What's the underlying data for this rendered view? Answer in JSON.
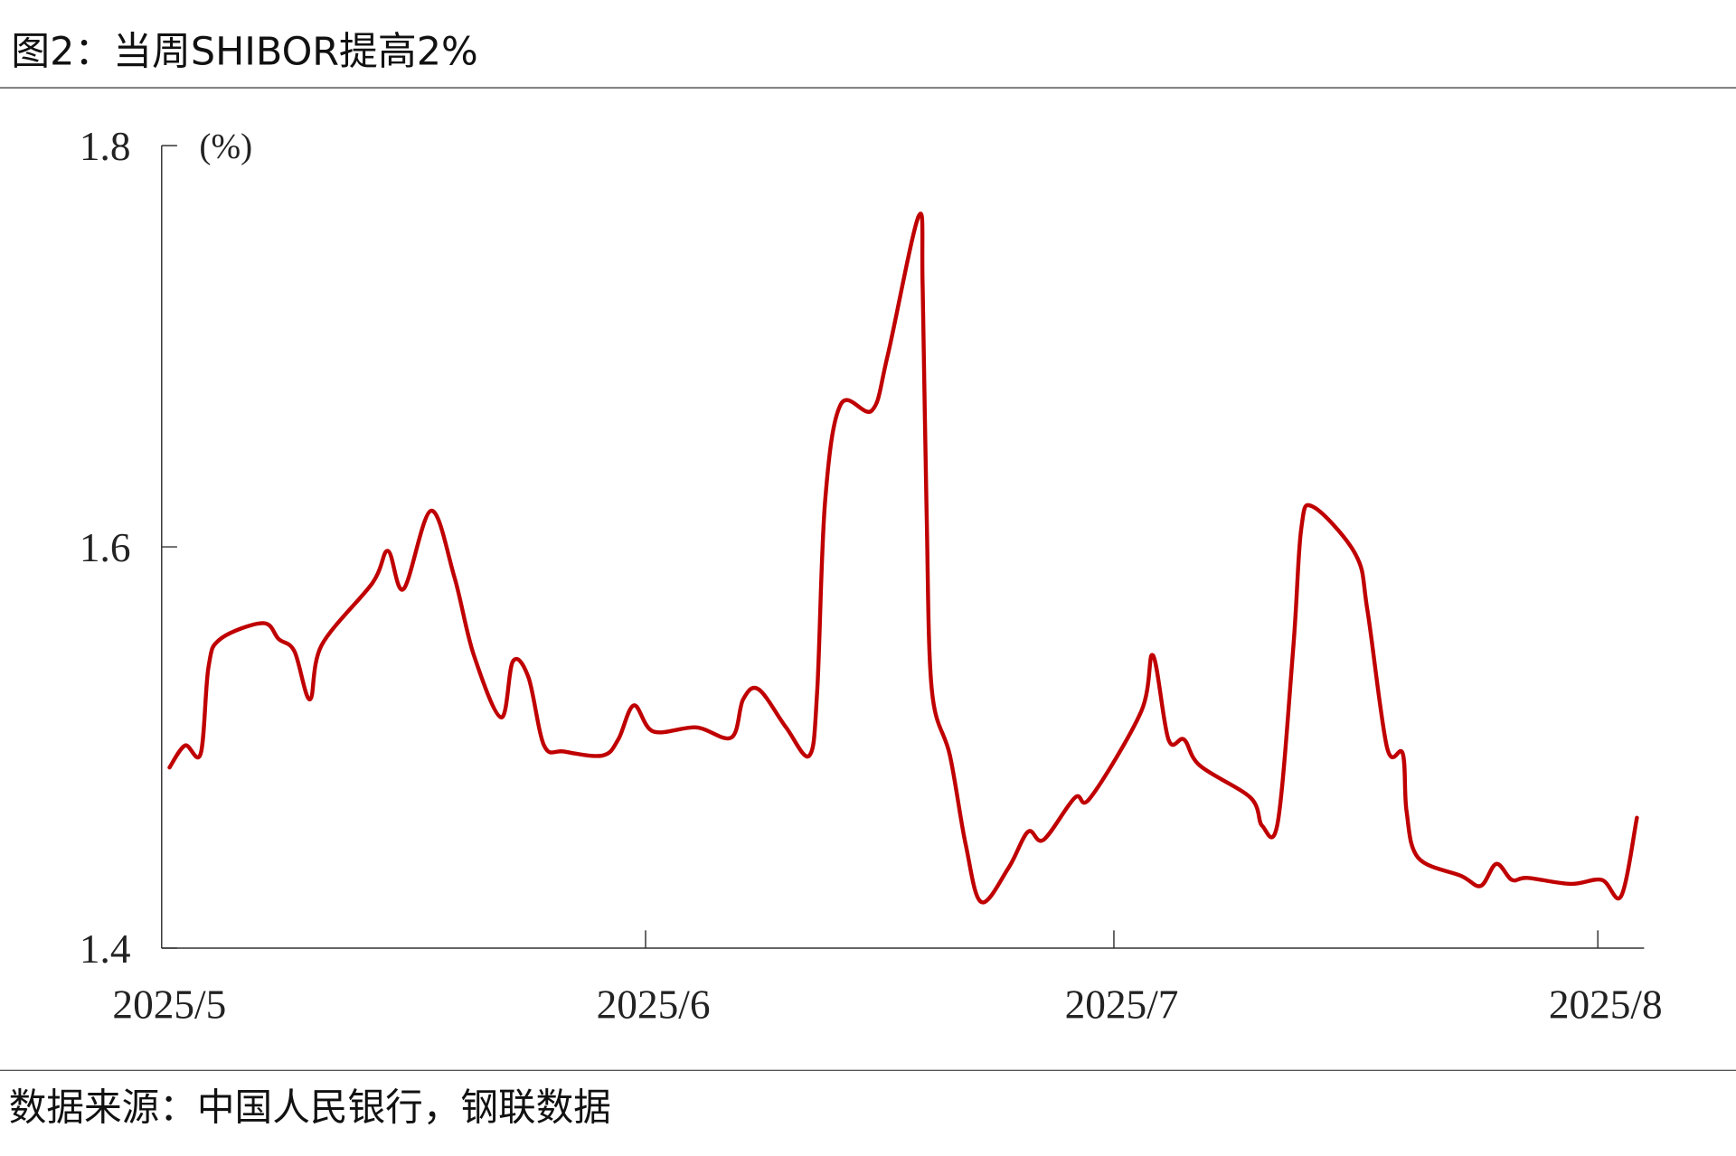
{
  "header": {
    "title": "图2：当周SHIBOR提高2%"
  },
  "footer": {
    "source": "数据来源：中国人民银行，钢联数据"
  },
  "chart_data": {
    "type": "line",
    "title": "图2：当周SHIBOR提高2%",
    "ylabel": "(%)",
    "xlabel": "",
    "ylim": [
      1.4,
      1.8
    ],
    "yticks": [
      "1.4",
      "1.6",
      "1.8"
    ],
    "xticks": [
      {
        "label": "2025/5",
        "date": "2025-05-01"
      },
      {
        "label": "2025/6",
        "date": "2025-06-01"
      },
      {
        "label": "2025/7",
        "date": "2025-07-01"
      },
      {
        "label": "2025/8",
        "date": "2025-08-01"
      }
    ],
    "xlim": [
      "2025-05-01",
      "2025-08-10"
    ],
    "grid": false,
    "line_color": "#c00000",
    "series": [
      {
        "points": [
          [
            "2025-05-01T12:00",
            1.49
          ],
          [
            "2025-05-02T12:00",
            1.501
          ],
          [
            "2025-05-03T12:00",
            1.497
          ],
          [
            "2025-05-04T00:00",
            1.54
          ],
          [
            "2025-05-04T18:00",
            1.554
          ],
          [
            "2025-05-07T12:00",
            1.562
          ],
          [
            "2025-05-08T12:00",
            1.554
          ],
          [
            "2025-05-09T12:00",
            1.548
          ],
          [
            "2025-05-10T12:00",
            1.524
          ],
          [
            "2025-05-11T06:00",
            1.551
          ],
          [
            "2025-05-14T12:00",
            1.582
          ],
          [
            "2025-05-15T12:00",
            1.598
          ],
          [
            "2025-05-16T12:00",
            1.579
          ],
          [
            "2025-05-18T06:00",
            1.618
          ],
          [
            "2025-05-19T18:00",
            1.585
          ],
          [
            "2025-05-21T00:00",
            1.546
          ],
          [
            "2025-05-22T18:00",
            1.515
          ],
          [
            "2025-05-23T12:00",
            1.543
          ],
          [
            "2025-05-24T12:00",
            1.535
          ],
          [
            "2025-05-25T12:00",
            1.501
          ],
          [
            "2025-05-26T18:00",
            1.498
          ],
          [
            "2025-05-29T06:00",
            1.496
          ],
          [
            "2025-05-30T06:00",
            1.504
          ],
          [
            "2025-05-31T06:00",
            1.521
          ],
          [
            "2025-06-01T12:00",
            1.508
          ],
          [
            "2025-06-04T06:00",
            1.51
          ],
          [
            "2025-06-06T12:00",
            1.505
          ],
          [
            "2025-06-07T06:00",
            1.524
          ],
          [
            "2025-06-08T06:00",
            1.529
          ],
          [
            "2025-06-10T00:00",
            1.51
          ],
          [
            "2025-06-11T12:00",
            1.496
          ],
          [
            "2025-06-12T00:00",
            1.529
          ],
          [
            "2025-06-12T12:00",
            1.623
          ],
          [
            "2025-06-13T12:00",
            1.671
          ],
          [
            "2025-06-15T12:00",
            1.668
          ],
          [
            "2025-06-16T12:00",
            1.695
          ],
          [
            "2025-06-18T12:00",
            1.765
          ],
          [
            "2025-06-18T18:00",
            1.729
          ],
          [
            "2025-06-19T00:00",
            1.618
          ],
          [
            "2025-06-19T08:00",
            1.529
          ],
          [
            "2025-06-20T12:00",
            1.496
          ],
          [
            "2025-06-21T12:00",
            1.452
          ],
          [
            "2025-06-22T12:00",
            1.423
          ],
          [
            "2025-06-24T06:00",
            1.44
          ],
          [
            "2025-06-25T12:00",
            1.458
          ],
          [
            "2025-06-26T12:00",
            1.454
          ],
          [
            "2025-06-28T12:00",
            1.475
          ],
          [
            "2025-06-29T12:00",
            1.475
          ],
          [
            "2025-07-02T18:00",
            1.518
          ],
          [
            "2025-07-03T12:00",
            1.546
          ],
          [
            "2025-07-04T12:00",
            1.504
          ],
          [
            "2025-07-05T12:00",
            1.504
          ],
          [
            "2025-07-06T12:00",
            1.491
          ],
          [
            "2025-07-09T18:00",
            1.475
          ],
          [
            "2025-07-10T12:00",
            1.461
          ],
          [
            "2025-07-11T12:00",
            1.463
          ],
          [
            "2025-07-12T12:00",
            1.551
          ],
          [
            "2025-07-13T00:00",
            1.609
          ],
          [
            "2025-07-13T18:00",
            1.62
          ],
          [
            "2025-07-16T12:00",
            1.596
          ],
          [
            "2025-07-17T06:00",
            1.568
          ],
          [
            "2025-07-18T12:00",
            1.5
          ],
          [
            "2025-07-19T12:00",
            1.497
          ],
          [
            "2025-07-19T18:00",
            1.468
          ],
          [
            "2025-07-20T12:00",
            1.445
          ],
          [
            "2025-07-23T06:00",
            1.436
          ],
          [
            "2025-07-24T12:00",
            1.431
          ],
          [
            "2025-07-25T12:00",
            1.442
          ],
          [
            "2025-07-26T12:00",
            1.434
          ],
          [
            "2025-07-27T12:00",
            1.435
          ],
          [
            "2025-07-30T06:00",
            1.432
          ],
          [
            "2025-08-01T06:00",
            1.434
          ],
          [
            "2025-08-02T12:00",
            1.426
          ],
          [
            "2025-08-03T12:00",
            1.465
          ]
        ]
      }
    ]
  }
}
